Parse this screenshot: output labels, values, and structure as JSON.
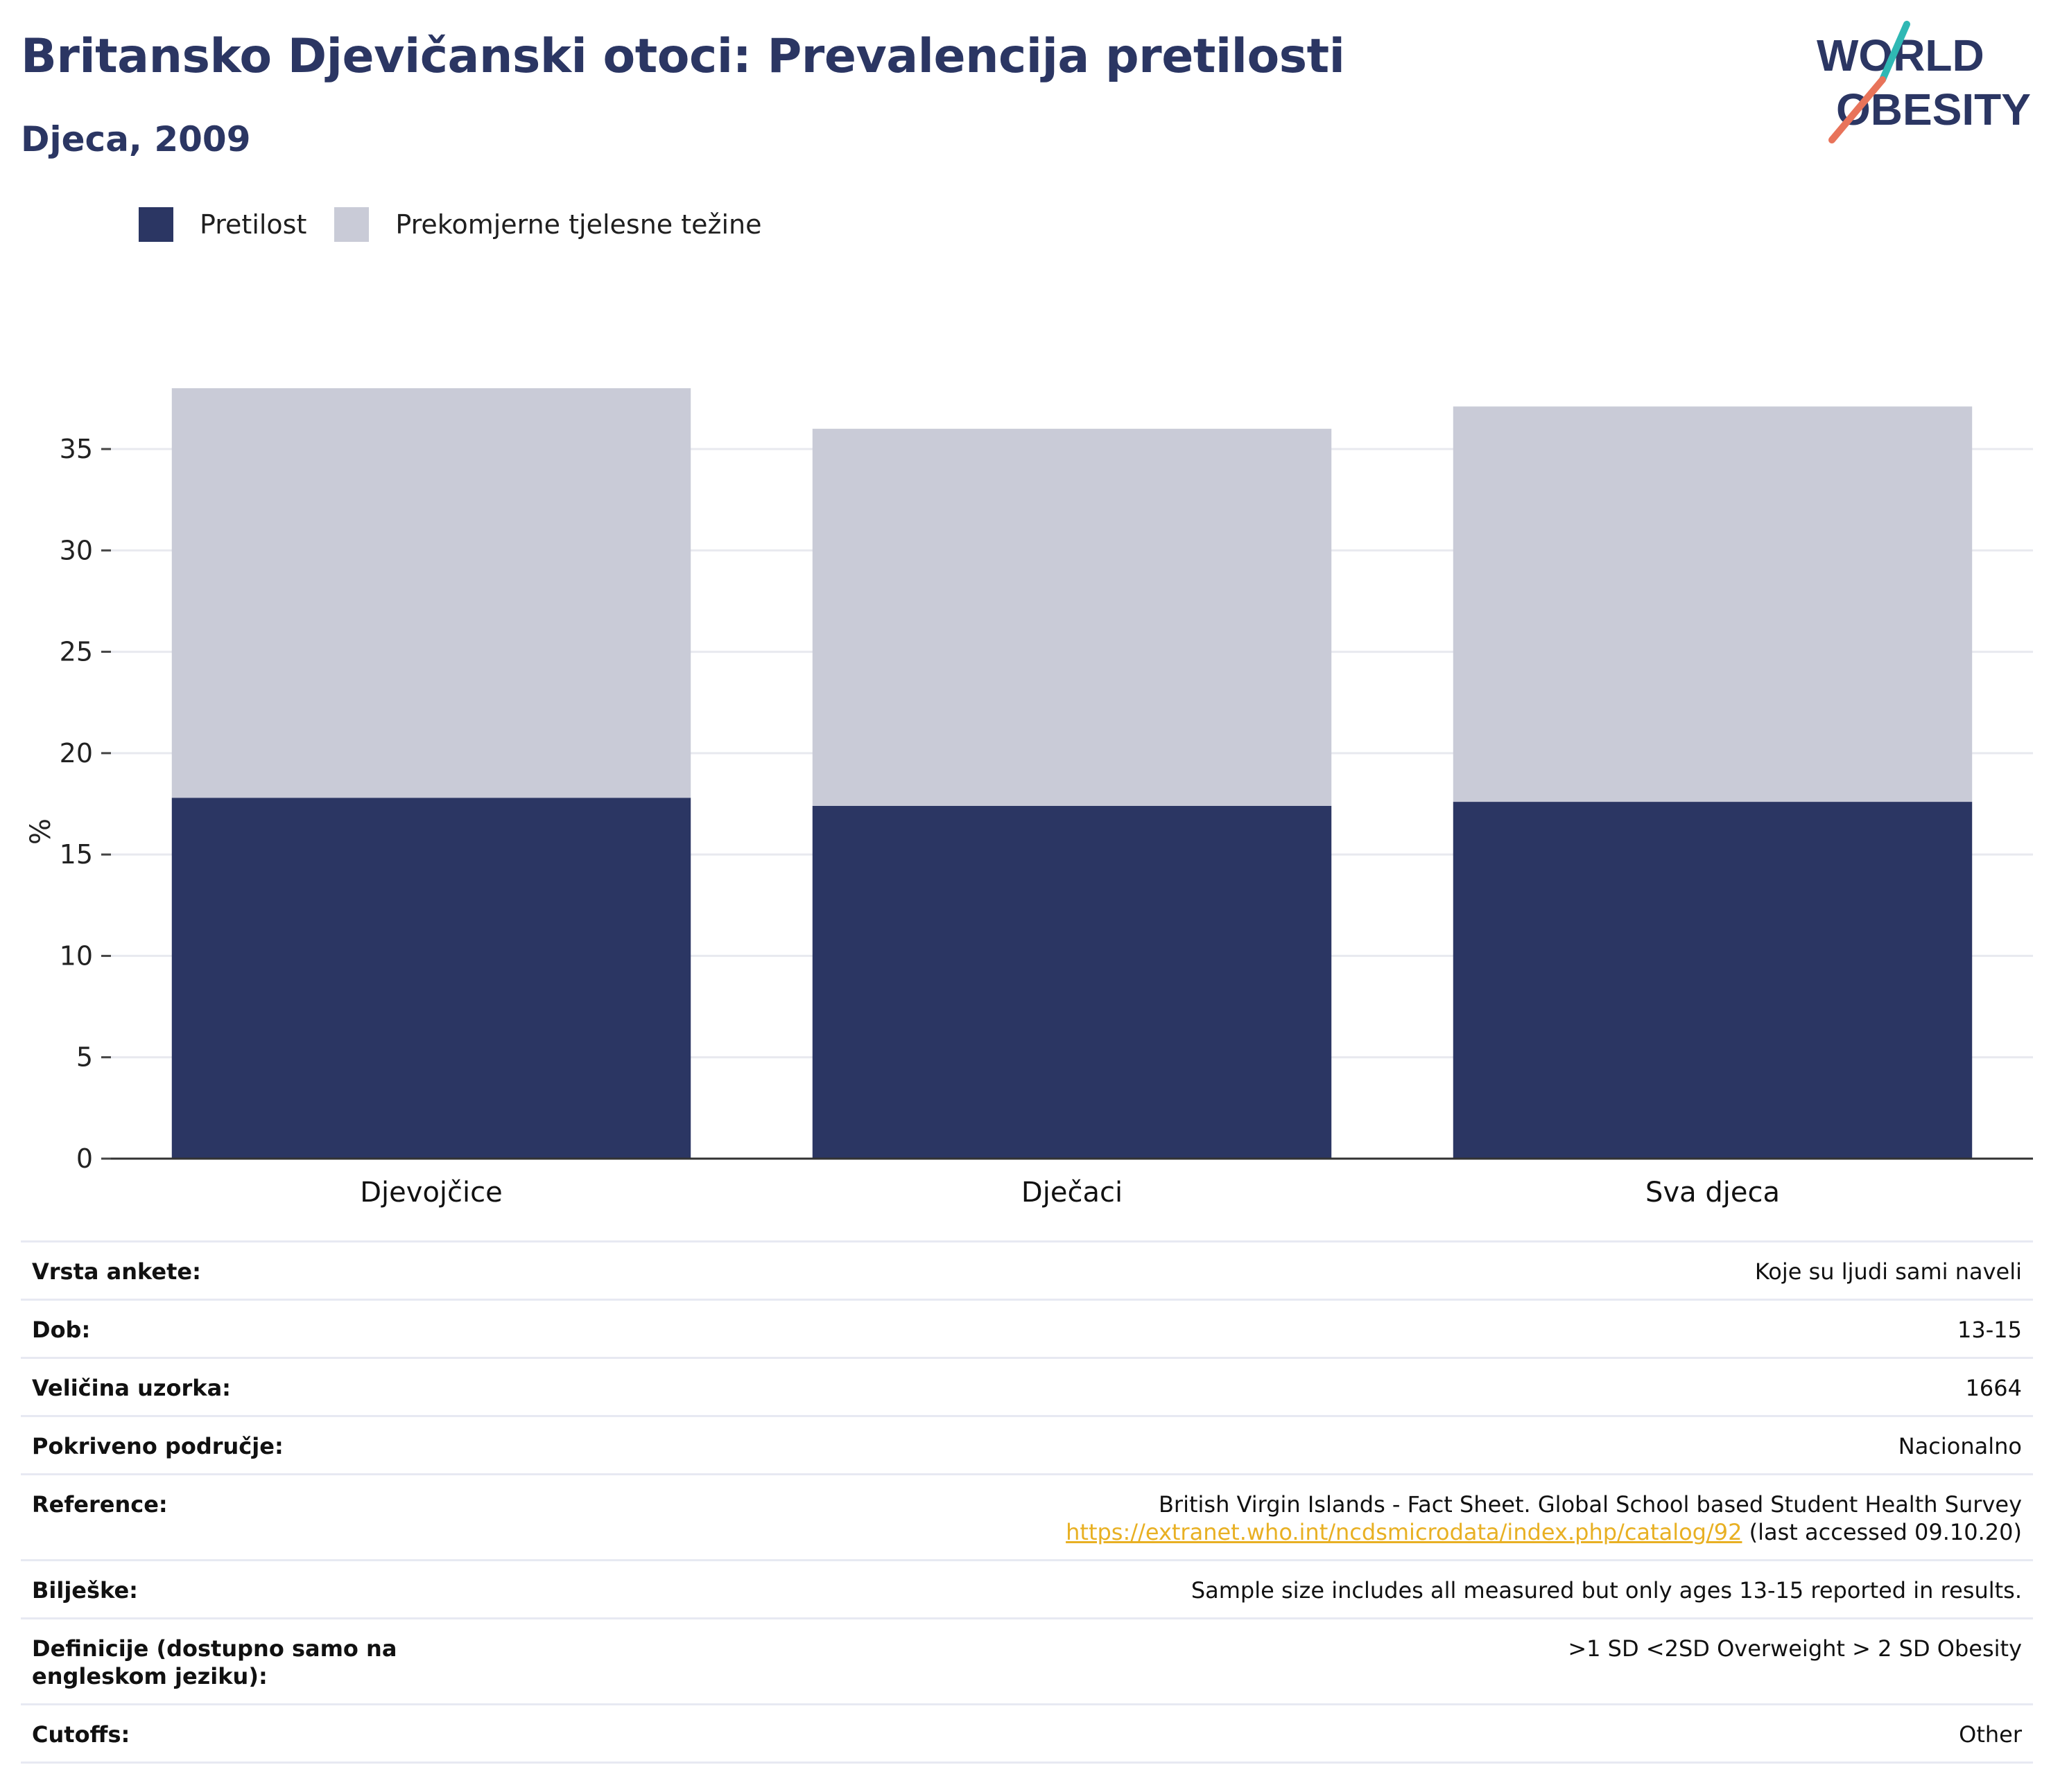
{
  "header": {
    "title": "Britansko Djevičanski otoci: Prevalencija pretilosti",
    "subtitle": "Djeca, 2009"
  },
  "logo": {
    "line1": "WORLD",
    "line2": "OBESITY",
    "accent_teal": "#2fb8b4",
    "accent_coral": "#e8735a"
  },
  "legend": [
    {
      "label": "Pretilost",
      "color": "#2b3663"
    },
    {
      "label": "Prekomjerne tjelesne težine",
      "color": "#c9cbd7"
    }
  ],
  "chart_data": {
    "type": "bar",
    "stacked": true,
    "categories": [
      "Djevojčice",
      "Dječaci",
      "Sva djeca"
    ],
    "series": [
      {
        "name": "Pretilost",
        "color": "#2b3663",
        "values": [
          17.8,
          17.4,
          17.6
        ]
      },
      {
        "name": "Prekomjerne tjelesne težine",
        "color": "#c9cbd7",
        "values": [
          20.2,
          18.6,
          19.5
        ]
      }
    ],
    "ylabel": "%",
    "ylim": [
      0,
      38
    ],
    "yticks": [
      0,
      5,
      10,
      15,
      20,
      25,
      30,
      35
    ],
    "grid": true,
    "legend_position": "top-left"
  },
  "meta": {
    "rows": [
      {
        "key": "Vrsta ankete:",
        "value": "Koje su ljudi sami naveli"
      },
      {
        "key": "Dob:",
        "value": "13-15"
      },
      {
        "key": "Veličina uzorka:",
        "value": "1664"
      },
      {
        "key": "Pokriveno područje:",
        "value": "Nacionalno"
      }
    ],
    "reference": {
      "key": "Reference:",
      "line1": "British Virgin Islands - Fact Sheet. Global School based Student Health Survey",
      "link": "https://extranet.who.int/ncdsmicrodata/index.php/catalog/92",
      "suffix": "(last accessed 09.10.20)"
    },
    "notes": {
      "key": "Bilješke:",
      "value": "Sample size includes all measured but only ages 13-15 reported in results."
    },
    "definitions": {
      "key": "Definicije (dostupno samo na engleskom jeziku):",
      "value": ">1 SD <2SD Overweight > 2 SD Obesity"
    },
    "cutoffs": {
      "key": "Cutoffs:",
      "value": "Other"
    }
  }
}
